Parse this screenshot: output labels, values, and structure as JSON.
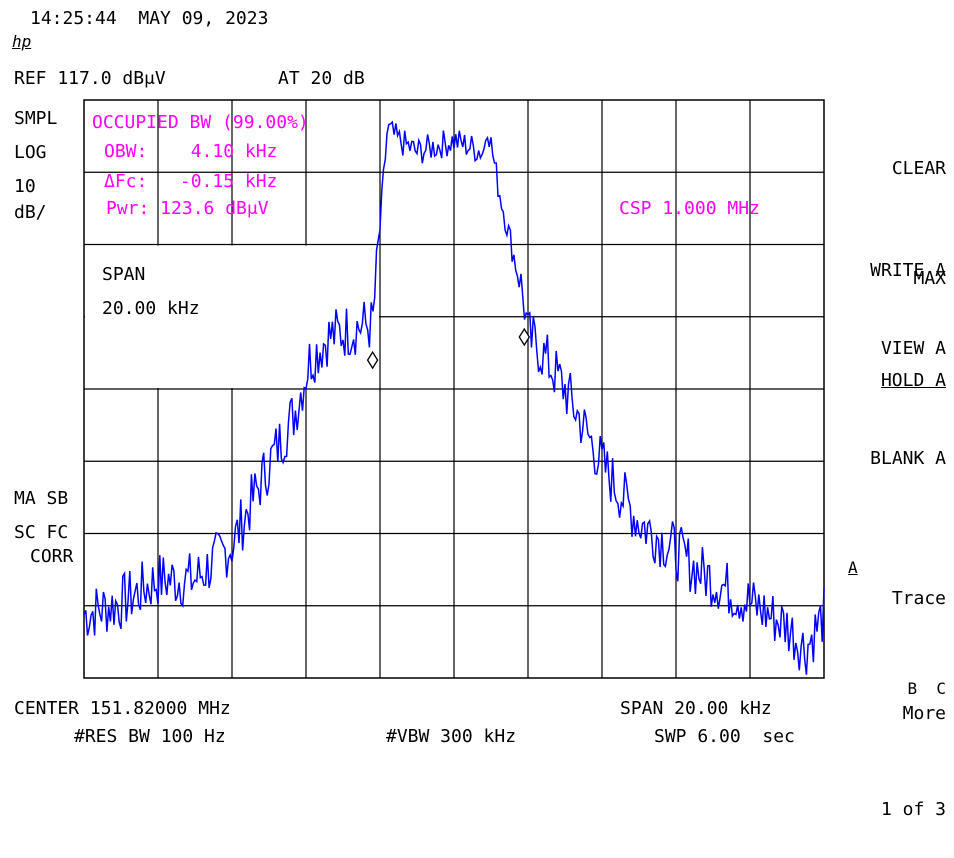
{
  "header": {
    "timestamp": "14:25:44  MAY 09, 2023",
    "logo": "hp",
    "ref_level": "REF 117.0 dBμV",
    "attenuation": "AT 20 dB"
  },
  "left_annotations": {
    "detector": "SMPL",
    "scale_type": "LOG",
    "scale_value": "10",
    "scale_unit": "dB/",
    "ma_sb": "MA SB",
    "sc_fc": "SC FC",
    "corr": "CORR"
  },
  "measurement": {
    "title": "OCCUPIED BW (99.00%)",
    "obw": "OBW:    4.10 kHz",
    "delta_fc": "ΔFc:   -0.15 kHz",
    "pwr": "Pwr: 123.6 dBμV",
    "csp": "CSP 1.000 MHz",
    "span_label": "SPAN",
    "span_value": "20.00 kHz"
  },
  "footer": {
    "center": "CENTER 151.82000 MHz",
    "span": "SPAN 20.00 kHz",
    "rbw": "#RES BW 100 Hz",
    "vbw": "#VBW 300 kHz",
    "sweep": "SWP 6.00  sec"
  },
  "softkeys": [
    {
      "line1": "CLEAR",
      "line2": "WRITE A"
    },
    {
      "line1": "MAX",
      "line2": "HOLD A"
    },
    {
      "line1": "VIEW A",
      "line2": ""
    },
    {
      "line1": "BLANK A",
      "line2": ""
    },
    {
      "line1": "Trace",
      "line2": "B  C",
      "active": "A"
    },
    {
      "line1": "More",
      "line2": "1 of 3"
    }
  ],
  "colors": {
    "trace": "#0000ff",
    "annotation": "#ff00ff",
    "grid": "#000000",
    "background": "#ffffff"
  },
  "chart_data": {
    "type": "line",
    "x_center_mhz": 151.82,
    "x_span_khz": 20,
    "xlim_khz": [
      -10,
      10
    ],
    "ylim_db": [
      17,
      117
    ],
    "grid": true,
    "series": [
      {
        "x": [
          -10,
          -9,
          -8,
          -7,
          -6,
          -5,
          -4.3,
          -3.9,
          -3.4,
          -2.5,
          -2.2,
          -1.8,
          -1.5,
          -1.0,
          0,
          0.8,
          0.9,
          1.2,
          1.9,
          2.0,
          2.3,
          3.0,
          4.0,
          5.0,
          6.0,
          6.5,
          7.0,
          8.0,
          9.0,
          9.5,
          10.0
        ],
        "y": [
          28,
          30,
          34,
          34,
          40,
          54,
          63,
          72,
          76,
          78,
          78,
          112,
          110,
          108,
          110,
          108,
          113,
          102,
          82,
          76,
          74,
          67,
          54,
          44,
          39,
          36,
          34,
          30,
          26,
          22,
          28
        ]
      }
    ],
    "obw_markers_khz": [
      -2.2,
      1.9
    ]
  }
}
